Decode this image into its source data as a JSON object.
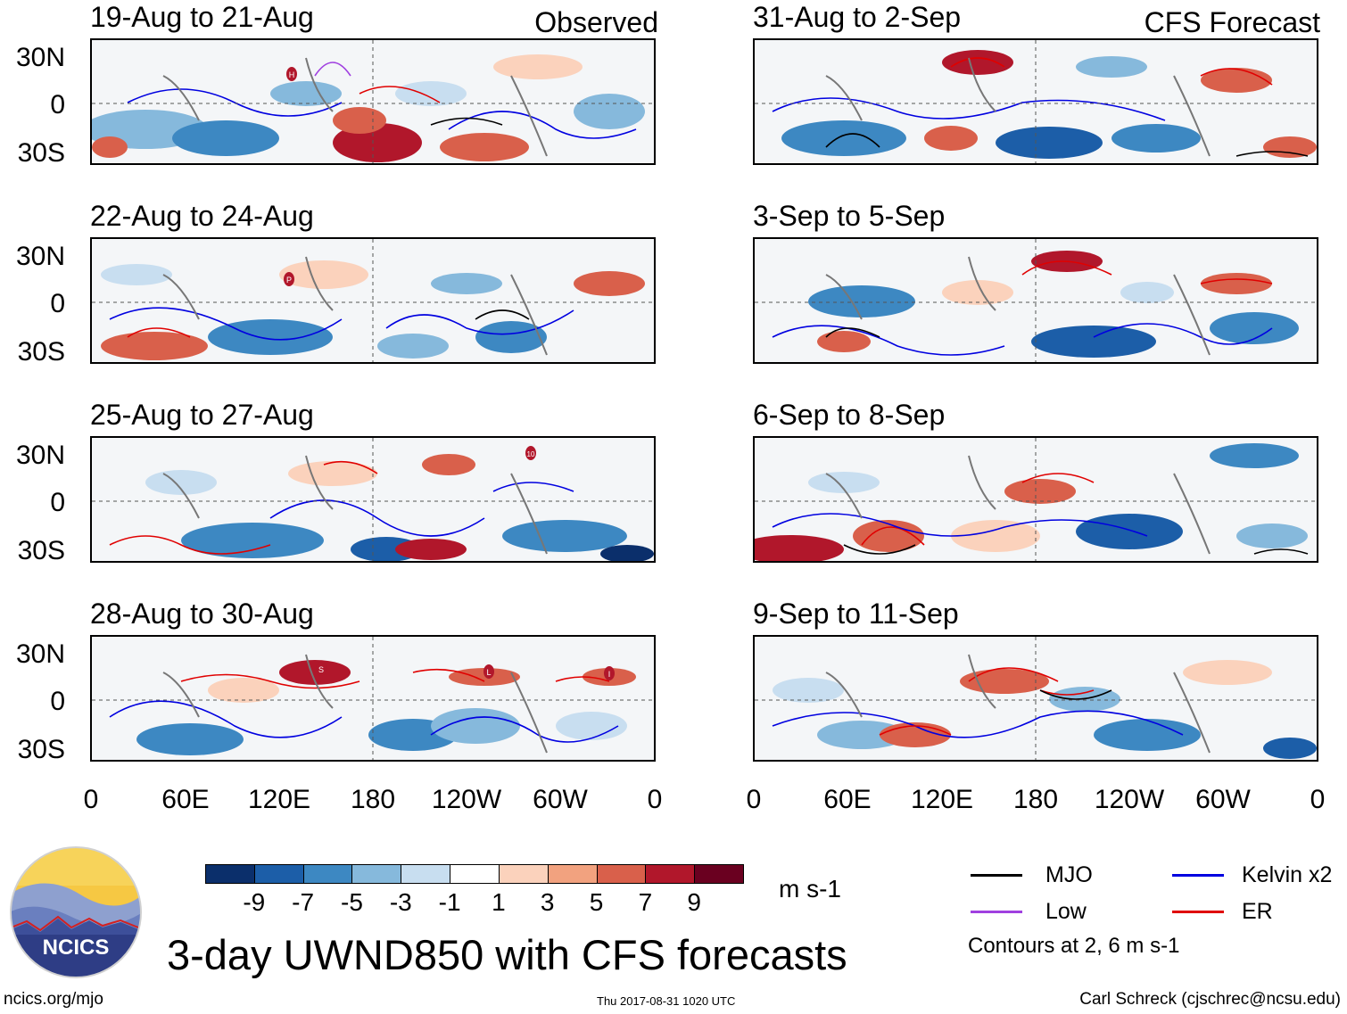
{
  "figure": {
    "title": "3-day UWND850 with CFS forecasts",
    "left_column_label": "Observed",
    "right_column_label": "CFS Forecast",
    "url": "ncics.org/mjo",
    "timestamp": "Thu 2017-08-31 1020 UTC",
    "credit": "Carl Schreck (cjschrec@ncsu.edu)",
    "logo_text": "NCICS"
  },
  "panels_left": [
    {
      "title": "19-Aug to 21-Aug"
    },
    {
      "title": "22-Aug to 24-Aug"
    },
    {
      "title": "25-Aug to 27-Aug"
    },
    {
      "title": "28-Aug to 30-Aug"
    }
  ],
  "panels_right": [
    {
      "title": "31-Aug to 2-Sep"
    },
    {
      "title": "3-Sep to 5-Sep"
    },
    {
      "title": "6-Sep to 8-Sep"
    },
    {
      "title": "9-Sep to 11-Sep"
    }
  ],
  "axes": {
    "y_ticks": [
      "30N",
      "0",
      "30S"
    ],
    "x_ticks": [
      "0",
      "60E",
      "120E",
      "180",
      "120W",
      "60W",
      "0"
    ]
  },
  "colorbar": {
    "unit": "m s-1",
    "colors": [
      "#0b2f6b",
      "#1c5ea8",
      "#3d88c2",
      "#86b9dc",
      "#c8def0",
      "#ffffff",
      "#fbd2bc",
      "#f2a27f",
      "#d9604b",
      "#b1172b",
      "#6a0020"
    ],
    "labels": [
      "-9",
      "-7",
      "-5",
      "-3",
      "-1",
      "1",
      "3",
      "5",
      "7",
      "9"
    ]
  },
  "legend": {
    "mjo": {
      "label": "MJO",
      "color": "#000000"
    },
    "kelvin": {
      "label": "Kelvin x2",
      "color": "#0000e0"
    },
    "low": {
      "label": "Low",
      "color": "#a040e0"
    },
    "er": {
      "label": "ER",
      "color": "#e00000"
    },
    "note": "Contours at 2, 6 m s-1"
  },
  "storm_markers": [
    {
      "panel": "19-Aug to 21-Aug",
      "label": "H"
    },
    {
      "panel": "22-Aug to 24-Aug",
      "label": "P"
    },
    {
      "panel": "25-Aug to 27-Aug",
      "label": "10"
    },
    {
      "panel": "28-Aug to 30-Aug",
      "label": "S"
    },
    {
      "panel": "28-Aug to 30-Aug",
      "label": "L"
    },
    {
      "panel": "28-Aug to 30-Aug",
      "label": "I"
    }
  ]
}
